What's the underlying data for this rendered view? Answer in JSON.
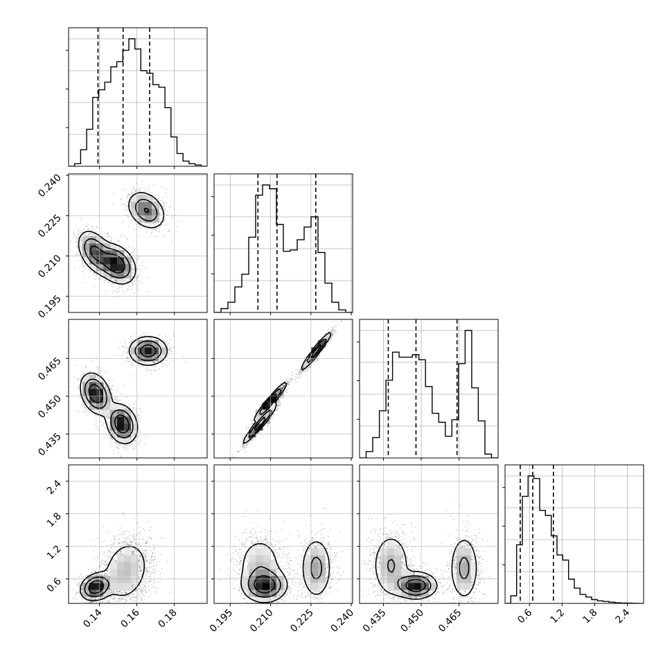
{
  "chart_data": {
    "type": "corner",
    "parameters": [
      {
        "index": 0,
        "range": [
          0.1235,
          0.1975
        ],
        "ticks": [
          0.14,
          0.16,
          0.18
        ],
        "tick_labels": [
          "0.14",
          "0.16",
          "0.18"
        ],
        "quantiles": [
          0.1392,
          0.1526,
          0.1668
        ],
        "hist": [
          0.0,
          0.02,
          0.13,
          0.29,
          0.54,
          0.6,
          0.66,
          0.78,
          0.82,
          0.91,
          1.0,
          0.92,
          0.75,
          0.73,
          0.64,
          0.62,
          0.46,
          0.23,
          0.1,
          0.04,
          0.02,
          0.01,
          0.0
        ]
      },
      {
        "index": 1,
        "range": [
          0.189,
          0.2405
        ],
        "ticks": [
          0.195,
          0.21,
          0.225,
          0.24
        ],
        "tick_labels": [
          "0.195",
          "0.210",
          "0.225",
          "0.240"
        ],
        "quantiles": [
          0.2053,
          0.2124,
          0.2268
        ],
        "hist": [
          0.0,
          0.03,
          0.08,
          0.2,
          0.3,
          0.59,
          0.92,
          1.0,
          0.97,
          0.69,
          0.48,
          0.49,
          0.57,
          0.67,
          0.75,
          0.47,
          0.23,
          0.08,
          0.02,
          0.0
        ]
      },
      {
        "index": 2,
        "range": [
          0.4255,
          0.4805
        ],
        "ticks": [
          0.435,
          0.45,
          0.465
        ],
        "tick_labels": [
          "0.435",
          "0.450",
          "0.465"
        ],
        "quantiles": [
          0.4369,
          0.4479,
          0.4642
        ],
        "hist": [
          0.0,
          0.05,
          0.16,
          0.37,
          0.61,
          0.83,
          0.79,
          0.79,
          0.81,
          0.77,
          0.56,
          0.35,
          0.28,
          0.17,
          0.3,
          0.74,
          1.0,
          0.55,
          0.29,
          0.03,
          0.0
        ]
      },
      {
        "index": 3,
        "range": [
          0.15,
          2.7
        ],
        "ticks": [
          0.6,
          1.2,
          1.8,
          2.4
        ],
        "tick_labels": [
          "0.6",
          "1.2",
          "1.8",
          "2.4"
        ],
        "quantiles": [
          0.43,
          0.66,
          1.04
        ],
        "hist": [
          0.0,
          0.06,
          0.46,
          0.84,
          1.0,
          0.98,
          0.73,
          0.69,
          0.53,
          0.38,
          0.34,
          0.19,
          0.12,
          0.07,
          0.05,
          0.03,
          0.02,
          0.015,
          0.01,
          0.005,
          0.003,
          0.002,
          0.001,
          0.0
        ]
      }
    ],
    "density_pairs": [
      {
        "row": 1,
        "col": 0,
        "modes": [
          {
            "x": 0.1375,
            "y": 0.2115,
            "sx": 0.0045,
            "sy": 0.004,
            "rho": -0.4,
            "w": 0.3
          },
          {
            "x": 0.149,
            "y": 0.207,
            "sx": 0.005,
            "sy": 0.0036,
            "rho": -0.3,
            "w": 0.42
          },
          {
            "x": 0.165,
            "y": 0.227,
            "sx": 0.005,
            "sy": 0.0035,
            "rho": -0.3,
            "w": 0.28
          }
        ]
      },
      {
        "row": 2,
        "col": 0,
        "modes": [
          {
            "x": 0.138,
            "y": 0.451,
            "sx": 0.004,
            "sy": 0.004,
            "rho": -0.3,
            "w": 0.35
          },
          {
            "x": 0.152,
            "y": 0.439,
            "sx": 0.004,
            "sy": 0.0038,
            "rho": -0.2,
            "w": 0.35
          },
          {
            "x": 0.166,
            "y": 0.468,
            "sx": 0.005,
            "sy": 0.0028,
            "rho": 0.0,
            "w": 0.3
          }
        ]
      },
      {
        "row": 2,
        "col": 1,
        "modes": [
          {
            "x": 0.206,
            "y": 0.439,
            "sx": 0.003,
            "sy": 0.0038,
            "rho": 0.96,
            "w": 0.35
          },
          {
            "x": 0.21,
            "y": 0.448,
            "sx": 0.003,
            "sy": 0.0038,
            "rho": 0.96,
            "w": 0.35
          },
          {
            "x": 0.227,
            "y": 0.468,
            "sx": 0.0028,
            "sy": 0.0038,
            "rho": 0.96,
            "w": 0.3
          }
        ]
      },
      {
        "row": 3,
        "col": 0,
        "modes": [
          {
            "x": 0.138,
            "y": 0.45,
            "sx": 0.004,
            "sy": 0.12,
            "rho": 0.2,
            "w": 0.4
          },
          {
            "x": 0.154,
            "y": 0.75,
            "sx": 0.007,
            "sy": 0.32,
            "rho": 0.2,
            "w": 0.6
          }
        ]
      },
      {
        "row": 3,
        "col": 1,
        "modes": [
          {
            "x": 0.208,
            "y": 0.48,
            "sx": 0.004,
            "sy": 0.15,
            "rho": 0.0,
            "w": 0.4
          },
          {
            "x": 0.206,
            "y": 0.85,
            "sx": 0.0045,
            "sy": 0.3,
            "rho": 0.0,
            "w": 0.3
          },
          {
            "x": 0.227,
            "y": 0.8,
            "sx": 0.003,
            "sy": 0.3,
            "rho": 0.0,
            "w": 0.3
          }
        ]
      },
      {
        "row": 3,
        "col": 2,
        "modes": [
          {
            "x": 0.448,
            "y": 0.48,
            "sx": 0.004,
            "sy": 0.12,
            "rho": 0.0,
            "w": 0.35
          },
          {
            "x": 0.438,
            "y": 0.85,
            "sx": 0.004,
            "sy": 0.32,
            "rho": 0.0,
            "w": 0.35
          },
          {
            "x": 0.467,
            "y": 0.8,
            "sx": 0.003,
            "sy": 0.32,
            "rho": 0.0,
            "w": 0.3
          }
        ]
      }
    ],
    "grid": true,
    "style": {
      "hist_color": "#000000",
      "grid_color": "#b0b0b0",
      "points_color": "#000000",
      "contour_color": "#000000"
    }
  }
}
